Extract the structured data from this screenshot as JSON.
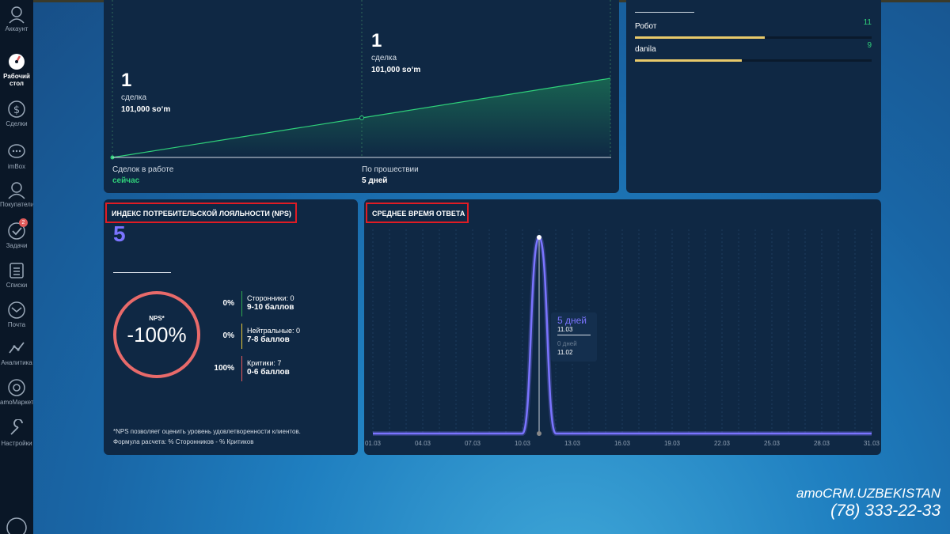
{
  "sidebar": {
    "items": [
      {
        "label": "Аккаунт",
        "icon": "account-icon"
      },
      {
        "label": "Рабочий стол",
        "icon": "dashboard-icon",
        "active": true
      },
      {
        "label": "Сделки",
        "icon": "deals-icon"
      },
      {
        "label": "imBox",
        "icon": "chat-icon"
      },
      {
        "label": "Покупатели",
        "icon": "customers-icon"
      },
      {
        "label": "Задачи",
        "icon": "tasks-icon",
        "badge": "2"
      },
      {
        "label": "Списки",
        "icon": "lists-icon"
      },
      {
        "label": "Почта",
        "icon": "mail-icon"
      },
      {
        "label": "Аналитика",
        "icon": "analytics-icon"
      },
      {
        "label": "amoМаркет",
        "icon": "market-icon"
      },
      {
        "label": "Настройки",
        "icon": "settings-icon"
      }
    ]
  },
  "deals_widget": {
    "left": {
      "count": "1",
      "unit": "сделка",
      "sum": "101,000 so‘m"
    },
    "right": {
      "count": "1",
      "unit": "сделка",
      "sum": "101,000 so‘m"
    },
    "footer_left_label": "Сделок в работе",
    "footer_left_value": "сейчас",
    "footer_right_label": "По прошествии",
    "footer_right_value": "5 дней"
  },
  "users_widget": {
    "rows": [
      {
        "name": "Робот",
        "value": "11",
        "fill": 0.55
      },
      {
        "name": "danila",
        "value": "9",
        "fill": 0.45
      }
    ]
  },
  "nps": {
    "title": "ИНДЕКС ПОТРЕБИТЕЛЬСКОЙ ЛОЯЛЬНОСТИ (NPS)",
    "value": "5",
    "circle_label": "NPS*",
    "circle_value": "-100%",
    "rows": [
      {
        "pct": "0%",
        "label": "Сторонники: 0",
        "range": "9-10 баллов",
        "color": "#2fa84f"
      },
      {
        "pct": "0%",
        "label": "Нейтральные: 0",
        "range": "7-8 баллов",
        "color": "#e8c93a"
      },
      {
        "pct": "100%",
        "label": "Критики: 7",
        "range": "0-6 баллов",
        "color": "#e85b5b"
      }
    ],
    "footnote_1": "*NPS позволяет оценить уровень удовлетворенности клиентов.",
    "footnote_2": "Формула расчета: % Сторонников - % Критиков"
  },
  "response_time": {
    "title": "СРЕДНЕЕ ВРЕМЯ ОТВЕТА",
    "tooltip": {
      "value": "5 дней",
      "date": "11.03",
      "prev_value": "0 дней",
      "prev_date": "11.02"
    }
  },
  "chart_data": {
    "type": "line",
    "title": "СРЕДНЕЕ ВРЕМЯ ОТВЕТА",
    "x": [
      "01.03",
      "02.03",
      "03.03",
      "04.03",
      "05.03",
      "06.03",
      "07.03",
      "08.03",
      "09.03",
      "10.03",
      "11.03",
      "12.03",
      "13.03",
      "14.03",
      "15.03",
      "16.03",
      "17.03",
      "18.03",
      "19.03",
      "20.03",
      "21.03",
      "22.03",
      "23.03",
      "24.03",
      "25.03",
      "26.03",
      "27.03",
      "28.03",
      "29.03",
      "30.03",
      "31.03"
    ],
    "tick_labels": [
      "01.03",
      "04.03",
      "07.03",
      "10.03",
      "13.03",
      "16.03",
      "19.03",
      "22.03",
      "25.03",
      "28.03",
      "31.03"
    ],
    "series": [
      {
        "values": [
          0,
          0,
          0,
          0,
          0,
          0,
          0,
          0,
          0,
          0,
          5,
          0,
          0,
          0,
          0,
          0,
          0,
          0,
          0,
          0,
          0,
          0,
          0,
          0,
          0,
          0,
          0,
          0,
          0,
          0,
          0
        ],
        "color": "#7b74ff"
      }
    ],
    "xlabel": "",
    "ylabel": "",
    "ylim": [
      0,
      5
    ],
    "grid": true
  },
  "watermark": {
    "brand": "amoCRM.UZBEKISTAN",
    "phone": "(78) 333-22-33"
  }
}
